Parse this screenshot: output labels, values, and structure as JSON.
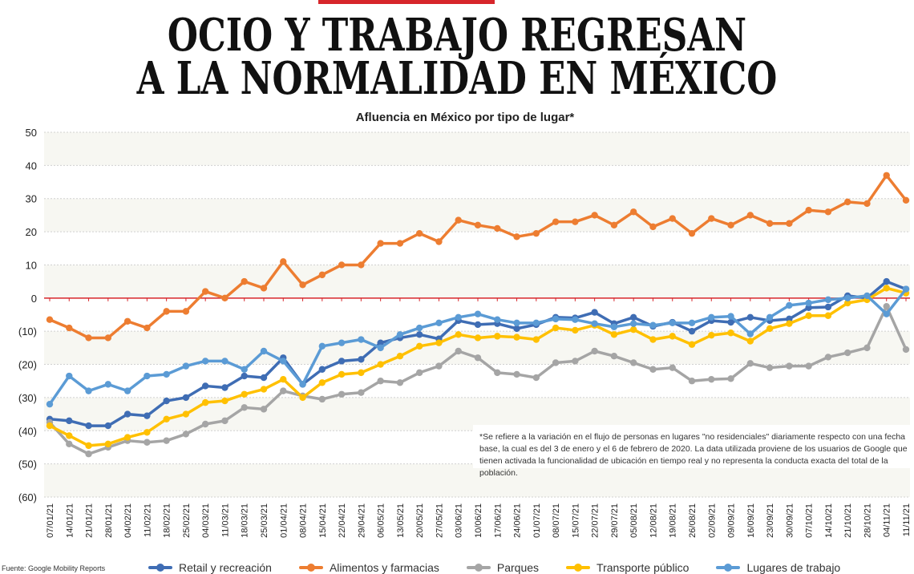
{
  "header": {
    "title_line1": "OCIO Y TRABAJO REGRESAN",
    "title_line2": "A LA NORMALIDAD EN MÉXICO"
  },
  "note": "*Se refiere a la variación en el flujo de personas en lugares \"no residenciales\" diariamente respecto con una fecha base, la cual es del 3 de enero y el 6 de febrero de 2020. La data utilizada proviene de los usuarios de Google que tienen activada la funcionalidad de ubicación en tiempo real y no representa la conducta exacta del total de la población.",
  "source": "Fuente: Google Mobility Reports",
  "chart_data": {
    "type": "line",
    "title": "Afluencia en México por tipo de lugar*",
    "xlabel": "",
    "ylabel": "",
    "ylim": [
      -60,
      50
    ],
    "yticks": [
      50,
      40,
      30,
      20,
      10,
      0,
      -10,
      -20,
      -30,
      -40,
      -50,
      -60
    ],
    "ytick_labels": [
      "50",
      "40",
      "30",
      "20",
      "10",
      "0",
      "(10)",
      "(20)",
      "(30)",
      "(40)",
      "(50)",
      "(60)"
    ],
    "grid": true,
    "legend_position": "bottom",
    "x": [
      "07/01/21",
      "14/01/21",
      "21/01/21",
      "28/01/21",
      "04/02/21",
      "11/02/21",
      "18/02/21",
      "25/02/21",
      "04/03/21",
      "11/03/21",
      "18/03/21",
      "25/03/21",
      "01/04/21",
      "08/04/21",
      "15/04/21",
      "22/04/21",
      "29/04/21",
      "06/05/21",
      "13/05/21",
      "20/05/21",
      "27/05/21",
      "03/06/21",
      "10/06/21",
      "17/06/21",
      "24/06/21",
      "01/07/21",
      "08/07/21",
      "15/07/21",
      "22/07/21",
      "29/07/21",
      "05/08/21",
      "12/08/21",
      "19/08/21",
      "26/08/21",
      "02/09/21",
      "09/09/21",
      "16/09/21",
      "23/09/21",
      "30/09/21",
      "07/10/21",
      "14/10/21",
      "21/10/21",
      "28/10/21",
      "04/11/21",
      "11/11/21"
    ],
    "series": [
      {
        "name": "Retail y recreación",
        "color": "#3f6db4",
        "values": [
          -36.5,
          -37,
          -38.5,
          -38.5,
          -35,
          -35.5,
          -31,
          -30,
          -26.5,
          -27,
          -23.5,
          -24,
          -18,
          -26,
          -21.5,
          -19,
          -18.5,
          -13.5,
          -12,
          -11,
          -12.3,
          -6.8,
          -8,
          -7.7,
          -9.2,
          -8,
          -5.8,
          -6,
          -4.3,
          -7.7,
          -5.8,
          -8.5,
          -7.3,
          -10,
          -6.8,
          -7.3,
          -5.8,
          -6.8,
          -6.3,
          -2.9,
          -2.7,
          0.7,
          0,
          5,
          2.7
        ]
      },
      {
        "name": "Alimentos y farmacias",
        "color": "#ed7d31",
        "values": [
          -6.5,
          -9,
          -12,
          -12,
          -7,
          -9,
          -4,
          -4,
          2,
          0,
          5,
          3,
          11,
          4,
          7,
          10,
          10,
          16.5,
          16.5,
          19.5,
          17,
          23.5,
          22,
          21,
          18.5,
          19.5,
          23,
          23,
          25,
          22,
          26,
          21.5,
          24,
          19.5,
          24,
          22,
          25,
          22.5,
          22.5,
          26.5,
          26,
          29,
          28.5,
          37,
          29.5
        ]
      },
      {
        "name": "Parques",
        "color": "#a5a5a5",
        "values": [
          -37.5,
          -44,
          -47,
          -45,
          -43,
          -43.5,
          -43,
          -41,
          -38,
          -37,
          -33,
          -33.5,
          -28,
          -29.5,
          -30.5,
          -29,
          -28.5,
          -25,
          -25.5,
          -22.5,
          -20.5,
          -16,
          -18,
          -22.5,
          -23,
          -24,
          -19.5,
          -19,
          -16,
          -17.5,
          -19.5,
          -21.5,
          -21,
          -25,
          -24.5,
          -24.3,
          -19.7,
          -21,
          -20.5,
          -20.5,
          -17.8,
          -16.5,
          -15,
          -2.5,
          -15.5
        ]
      },
      {
        "name": "Transporte público",
        "color": "#ffc000",
        "values": [
          -38.5,
          -41.5,
          -44.5,
          -44,
          -42,
          -40.5,
          -36.5,
          -35,
          -31.5,
          -31,
          -29,
          -27.5,
          -24.5,
          -30,
          -25.5,
          -23,
          -22.5,
          -20,
          -17.5,
          -14.5,
          -13.5,
          -11,
          -12,
          -11.5,
          -11.8,
          -12.5,
          -9,
          -9.7,
          -8.2,
          -11,
          -9.5,
          -12.5,
          -11.5,
          -14,
          -11.2,
          -10.5,
          -13,
          -9.2,
          -7.7,
          -5.3,
          -5.3,
          -1.5,
          -0.5,
          3,
          1.5
        ]
      },
      {
        "name": "Lugares de trabajo",
        "color": "#5b9bd5",
        "values": [
          -32,
          -23.5,
          -28,
          -26,
          -28,
          -23.5,
          -23,
          -20.5,
          -19,
          -19,
          -21.5,
          -16,
          -19,
          -26,
          -14.5,
          -13.5,
          -12.5,
          -15,
          -11,
          -9,
          -7.5,
          -5.8,
          -4.8,
          -6.5,
          -7.5,
          -7.5,
          -6.3,
          -6.5,
          -7.7,
          -8.7,
          -7.7,
          -8.2,
          -7.5,
          -7.5,
          -5.8,
          -5.5,
          -10.8,
          -5.8,
          -2.2,
          -1.5,
          -0.5,
          0,
          0.7,
          -4.8,
          2.7
        ]
      }
    ]
  }
}
